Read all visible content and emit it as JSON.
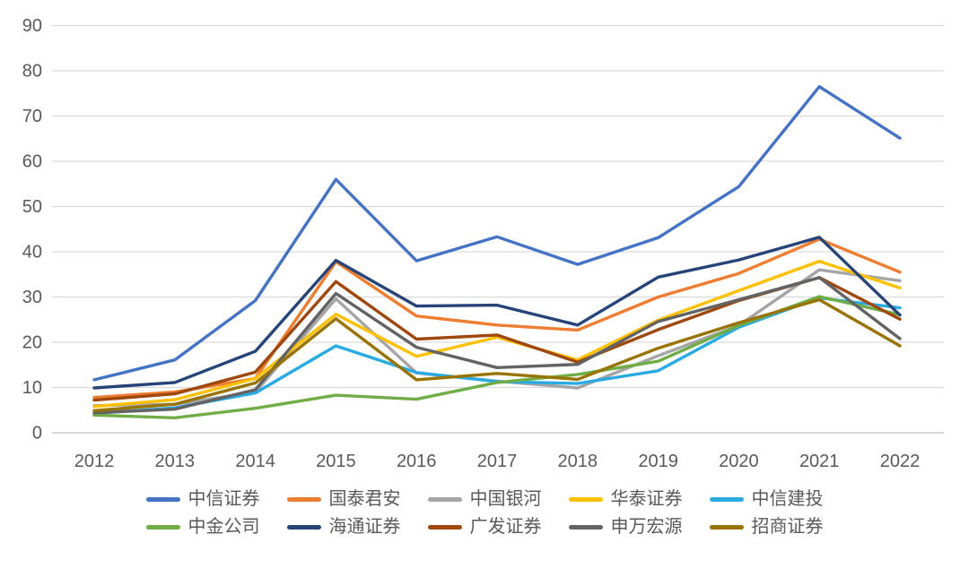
{
  "chart_data": {
    "type": "line",
    "title": "",
    "xlabel": "",
    "ylabel": "",
    "x": [
      2012,
      2013,
      2014,
      2015,
      2016,
      2017,
      2018,
      2019,
      2020,
      2021,
      2022
    ],
    "x_tick_labels": [
      "2012",
      "2013",
      "2014",
      "2015",
      "2016",
      "2017",
      "2018",
      "2019",
      "2020",
      "2021",
      "2022"
    ],
    "y_tick_labels": [
      "0",
      "10",
      "20",
      "30",
      "40",
      "50",
      "60",
      "70",
      "80",
      "90"
    ],
    "ylim": [
      0,
      90
    ],
    "ytick_step": 10,
    "grid": true,
    "legend_position": "bottom",
    "legend_rows": 2,
    "series": [
      {
        "name": "中信证券",
        "color": "#4472C4",
        "values": [
          11.7,
          16.1,
          29.2,
          56.0,
          38.0,
          43.3,
          37.2,
          43.1,
          54.4,
          76.5,
          65.1
        ]
      },
      {
        "name": "国泰君安",
        "color": "#ED7D31",
        "values": [
          7.8,
          9.0,
          12.0,
          37.8,
          25.8,
          23.8,
          22.7,
          30.0,
          35.2,
          42.8,
          35.5
        ]
      },
      {
        "name": "中国银河",
        "color": "#A5A5A5",
        "values": [
          6.0,
          6.3,
          9.0,
          29.6,
          13.2,
          11.4,
          9.9,
          17.0,
          23.7,
          36.0,
          33.6
        ]
      },
      {
        "name": "华泰证券",
        "color": "#FFC000",
        "values": [
          5.8,
          7.3,
          12.0,
          26.2,
          16.9,
          21.1,
          16.1,
          24.9,
          31.4,
          37.9,
          32.0
        ]
      },
      {
        "name": "中信建投",
        "color": "#29ABE2",
        "values": [
          4.3,
          5.5,
          8.8,
          19.2,
          13.3,
          11.3,
          10.9,
          13.7,
          23.3,
          29.8,
          27.6
        ]
      },
      {
        "name": "中金公司",
        "color": "#70AD47",
        "values": [
          3.9,
          3.3,
          5.4,
          8.3,
          7.4,
          11.1,
          12.9,
          15.8,
          23.7,
          30.1,
          26.1
        ]
      },
      {
        "name": "海通证券",
        "color": "#264478",
        "values": [
          9.9,
          11.1,
          18.0,
          38.1,
          28.0,
          28.2,
          23.8,
          34.4,
          38.2,
          43.2,
          26.0
        ]
      },
      {
        "name": "广发证券",
        "color": "#9E480E",
        "values": [
          7.2,
          8.6,
          13.4,
          33.4,
          20.7,
          21.6,
          15.6,
          22.8,
          29.2,
          34.3,
          25.1
        ]
      },
      {
        "name": "申万宏源",
        "color": "#636363",
        "values": [
          4.4,
          5.2,
          9.5,
          30.8,
          18.9,
          14.4,
          15.1,
          24.6,
          29.4,
          34.3,
          20.8
        ]
      },
      {
        "name": "招商证券",
        "color": "#997300",
        "values": [
          4.9,
          6.3,
          11.0,
          25.2,
          11.7,
          13.1,
          11.8,
          18.7,
          24.3,
          29.4,
          19.2
        ]
      }
    ]
  },
  "colors": {
    "background": "#FFFFFF",
    "gridline": "#D9D9D9",
    "baseline": "#C0C0C0",
    "tick_label": "#595959",
    "legend_text": "#595959"
  }
}
